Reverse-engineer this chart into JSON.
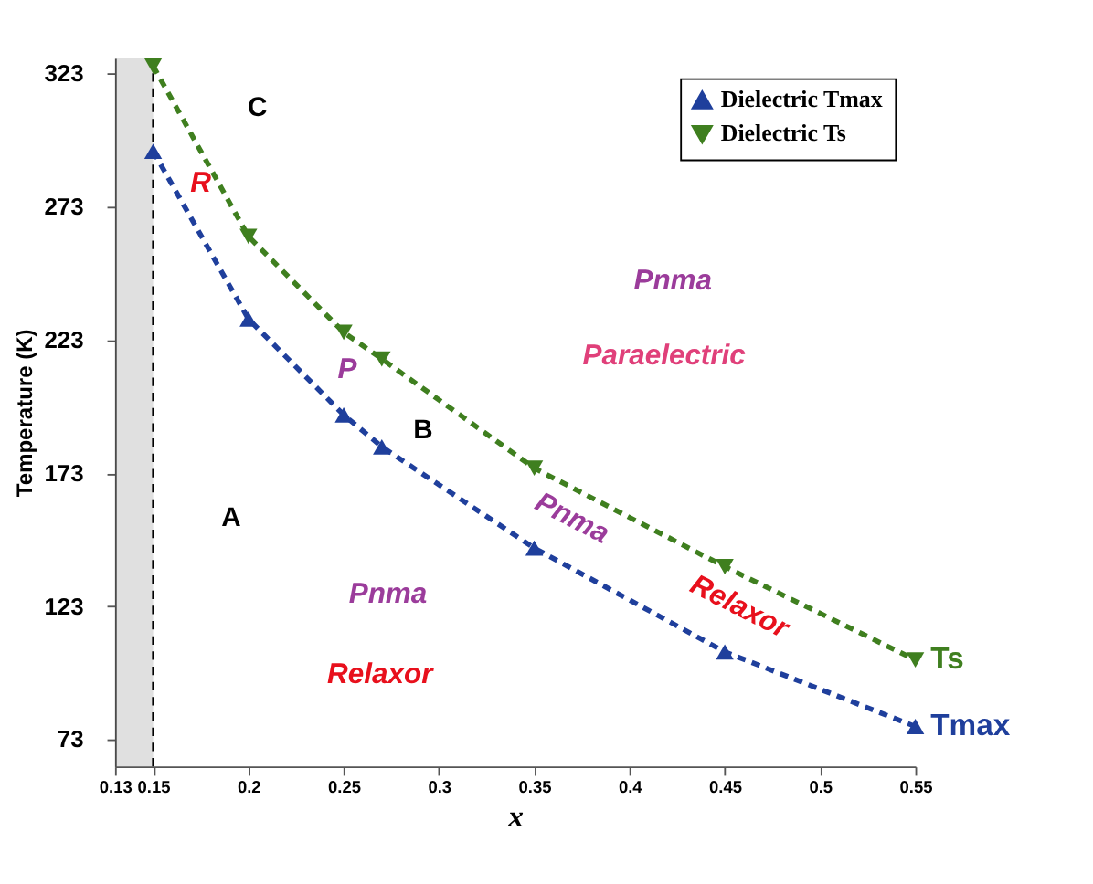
{
  "chart_data": {
    "type": "line",
    "xlabel": "x",
    "ylabel": "Temperature (K)",
    "xlim": [
      0.13,
      0.55
    ],
    "xticks": [
      0.13,
      0.15,
      0.2,
      0.25,
      0.3,
      0.35,
      0.4,
      0.45,
      0.5,
      0.55
    ],
    "ylim": [
      63,
      329
    ],
    "yticks": [
      73,
      123,
      173,
      223,
      273,
      323
    ],
    "x": [
      0.15,
      0.2,
      0.25,
      0.27,
      0.35,
      0.45,
      0.55
    ],
    "series": [
      {
        "name": "Dielectric Tmax",
        "color": "#1f3f9c",
        "values": [
          294,
          231,
          195,
          183,
          145,
          106,
          78
        ]
      },
      {
        "name": "Dielectric Ts",
        "color": "#3f7f1f",
        "values": [
          326,
          262,
          226,
          216,
          175,
          138,
          103
        ]
      }
    ],
    "marker": "triangle",
    "line_style": "dashed",
    "grid": false,
    "legend": "top right",
    "bands": [
      {
        "axis": "x",
        "from": 0.13,
        "to": 0.15,
        "color": "#000000"
      }
    ],
    "ref_lines": [
      {
        "axis": "x",
        "value": 0.15,
        "color": "#000000",
        "line_style": "dashed"
      }
    ],
    "annotations": [
      "C",
      "R",
      "P",
      "B",
      "A",
      "Pnma",
      "Relaxor",
      "Pnma",
      "Paraelectric",
      "Pnma",
      "Relaxor",
      {
        "text": "Ts",
        "x": 0.55,
        "y": 103
      },
      {
        "text": "Tmax",
        "x": 0.55,
        "y": 78
      }
    ]
  }
}
